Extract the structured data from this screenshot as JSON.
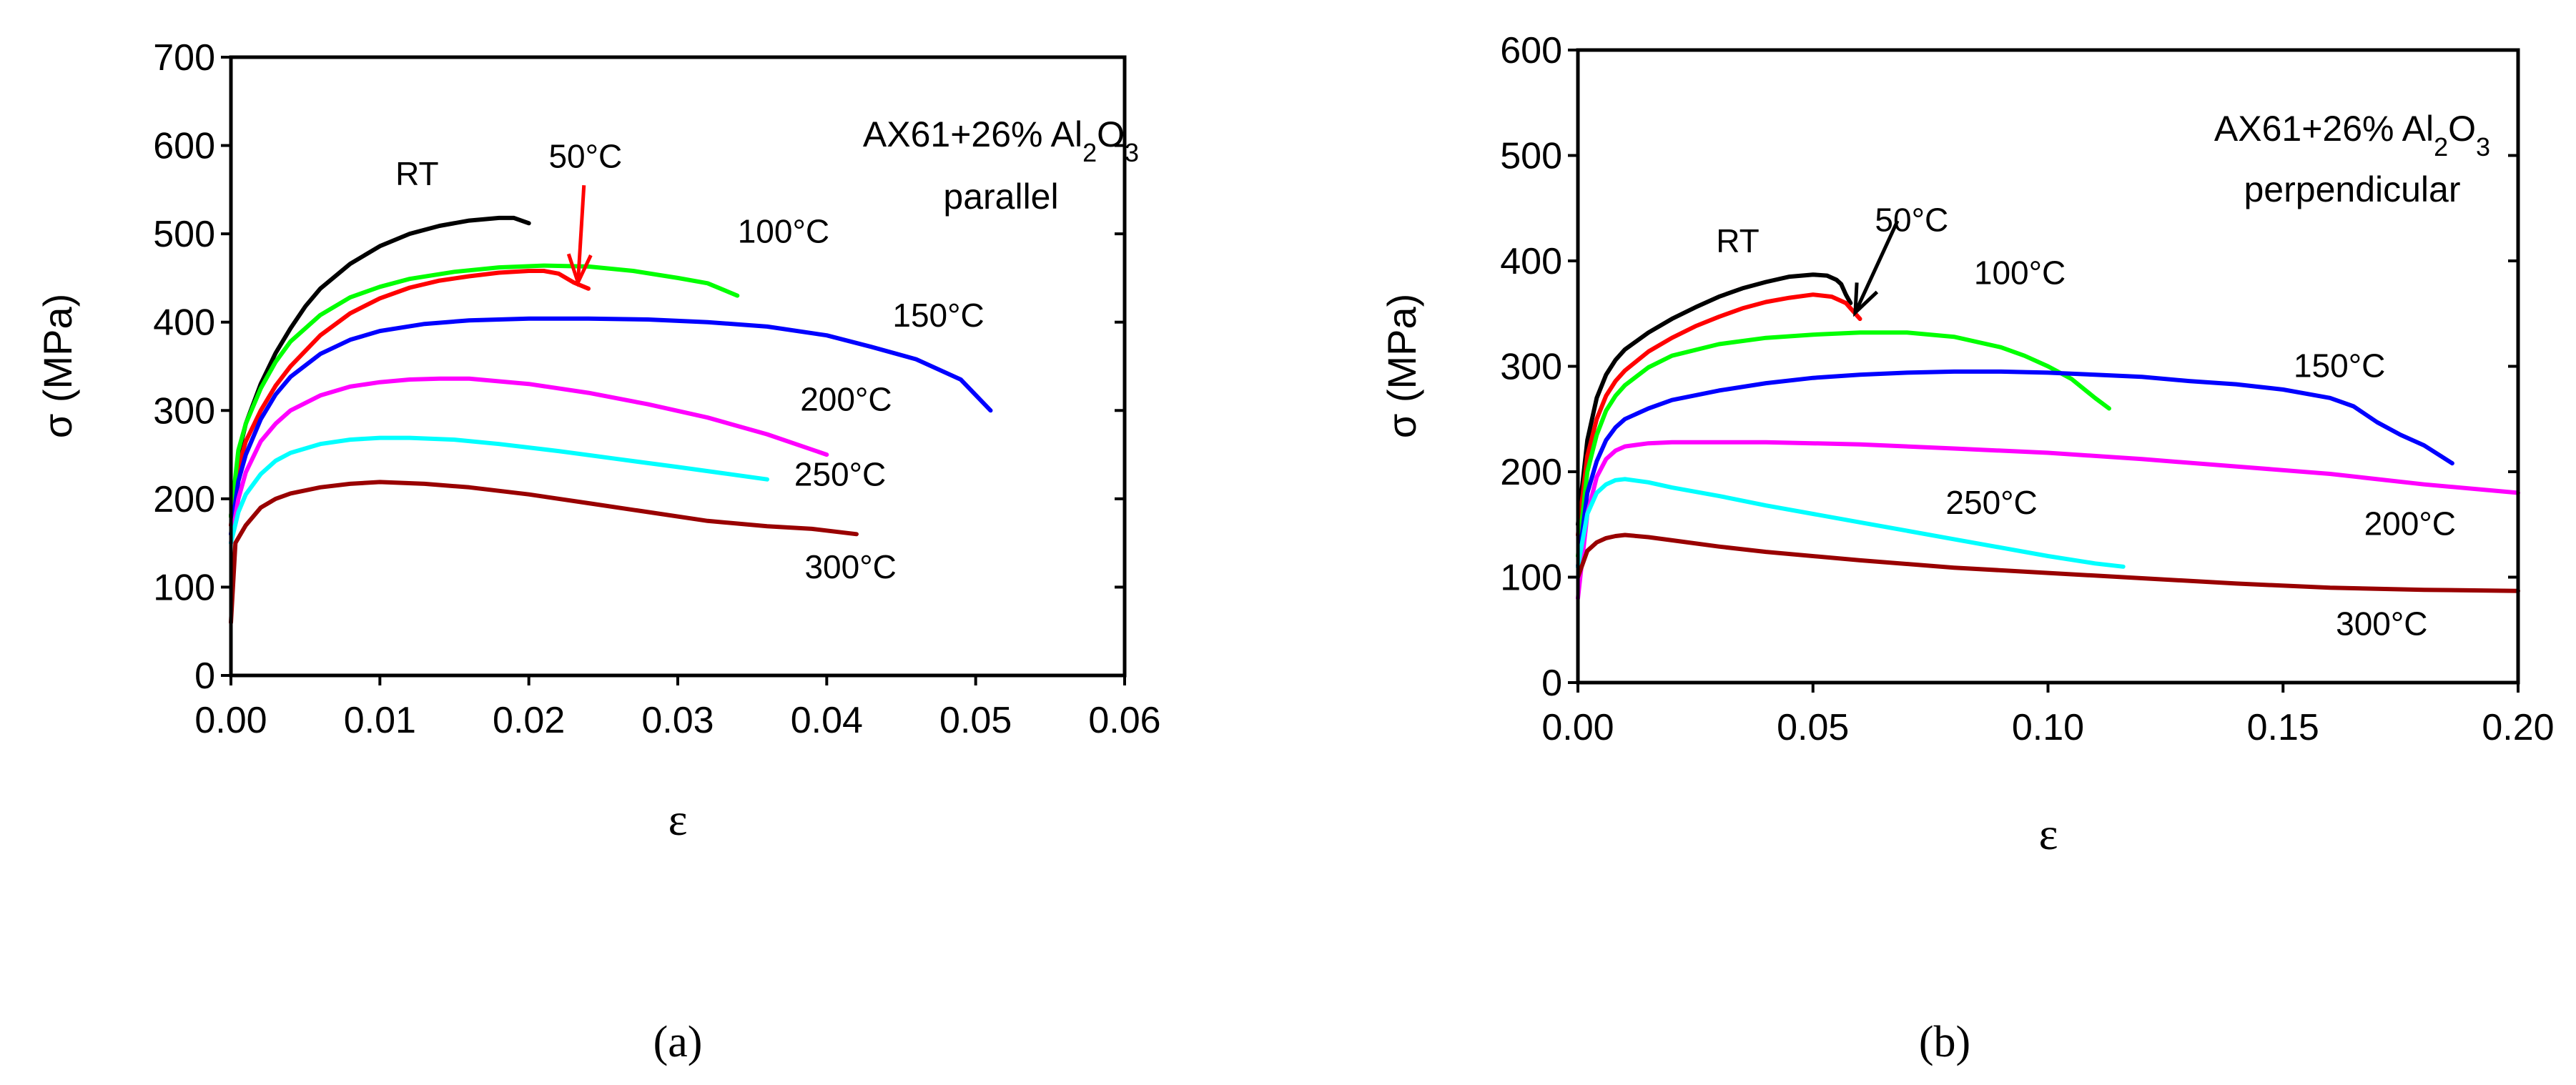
{
  "chart_data": [
    {
      "type": "line",
      "panel": "a",
      "caption": "(a)",
      "xlabel": "ε",
      "ylabel": "σ (MPa)",
      "xlim": [
        0,
        0.06
      ],
      "ylim": [
        0,
        700
      ],
      "xticks": [
        "0.00",
        "0.01",
        "0.02",
        "0.03",
        "0.04",
        "0.05",
        "0.06"
      ],
      "yticks": [
        "0",
        "100",
        "200",
        "300",
        "400",
        "500",
        "600",
        "700"
      ],
      "grid": false,
      "annotation": {
        "line1": "AX61+26% Al",
        "sub1": "2",
        "mid": "O",
        "sub2": "3",
        "line2": "parallel"
      },
      "arrow": {
        "color": "#ff0000",
        "from": [
          0.0237,
          555
        ],
        "to": [
          0.0233,
          445
        ]
      },
      "series": [
        {
          "name": "RT",
          "color": "#000000",
          "label": "RT",
          "label_at": [
            0.0125,
            555
          ],
          "x": [
            0,
            0.0005,
            0.001,
            0.002,
            0.003,
            0.004,
            0.005,
            0.006,
            0.008,
            0.01,
            0.012,
            0.014,
            0.016,
            0.018,
            0.019,
            0.02
          ],
          "y": [
            180,
            250,
            285,
            330,
            365,
            393,
            418,
            438,
            466,
            486,
            500,
            509,
            515,
            518,
            518,
            512
          ]
        },
        {
          "name": "50°C",
          "color": "#ff0000",
          "label": "50°C",
          "label_at": [
            0.0238,
            575
          ],
          "x": [
            0,
            0.0005,
            0.001,
            0.002,
            0.003,
            0.004,
            0.006,
            0.008,
            0.01,
            0.012,
            0.014,
            0.016,
            0.018,
            0.02,
            0.021,
            0.022,
            0.023,
            0.024
          ],
          "y": [
            170,
            235,
            265,
            300,
            328,
            350,
            385,
            410,
            427,
            439,
            447,
            452,
            456,
            458,
            458,
            455,
            445,
            438
          ]
        },
        {
          "name": "100°C",
          "color": "#00ff00",
          "label": "100°C",
          "label_at": [
            0.0371,
            490
          ],
          "x": [
            0,
            0.0005,
            0.001,
            0.002,
            0.003,
            0.004,
            0.006,
            0.008,
            0.01,
            0.012,
            0.015,
            0.018,
            0.021,
            0.024,
            0.027,
            0.03,
            0.032,
            0.034
          ],
          "y": [
            180,
            255,
            285,
            325,
            355,
            378,
            408,
            428,
            440,
            449,
            457,
            462,
            464,
            463,
            458,
            450,
            444,
            430
          ]
        },
        {
          "name": "150°C",
          "color": "#0000ff",
          "label": "150°C",
          "label_at": [
            0.0475,
            395
          ],
          "x": [
            0,
            0.0005,
            0.001,
            0.002,
            0.003,
            0.004,
            0.006,
            0.008,
            0.01,
            0.013,
            0.016,
            0.02,
            0.024,
            0.028,
            0.032,
            0.036,
            0.04,
            0.043,
            0.046,
            0.049,
            0.051
          ],
          "y": [
            160,
            220,
            250,
            290,
            318,
            338,
            364,
            380,
            390,
            398,
            402,
            404,
            404,
            403,
            400,
            395,
            385,
            372,
            358,
            335,
            300
          ]
        },
        {
          "name": "200°C",
          "color": "#ff00ff",
          "label": "200°C",
          "label_at": [
            0.0413,
            300
          ],
          "x": [
            0,
            0.0005,
            0.001,
            0.002,
            0.003,
            0.004,
            0.006,
            0.008,
            0.01,
            0.012,
            0.014,
            0.016,
            0.02,
            0.024,
            0.028,
            0.032,
            0.036,
            0.04
          ],
          "y": [
            150,
            200,
            230,
            265,
            285,
            300,
            317,
            327,
            332,
            335,
            336,
            336,
            330,
            320,
            307,
            292,
            273,
            250
          ]
        },
        {
          "name": "250°C",
          "color": "#00ffff",
          "label": "250°C",
          "label_at": [
            0.0409,
            215
          ],
          "x": [
            0,
            0.0005,
            0.001,
            0.002,
            0.003,
            0.004,
            0.006,
            0.008,
            0.01,
            0.012,
            0.015,
            0.018,
            0.022,
            0.026,
            0.03,
            0.033,
            0.036
          ],
          "y": [
            150,
            185,
            205,
            228,
            243,
            252,
            262,
            267,
            269,
            269,
            267,
            262,
            254,
            245,
            236,
            229,
            222
          ]
        },
        {
          "name": "300°C",
          "color": "#990000",
          "label": "300°C",
          "label_at": [
            0.0416,
            110
          ],
          "x": [
            0,
            0.0003,
            0.001,
            0.002,
            0.003,
            0.004,
            0.006,
            0.008,
            0.01,
            0.013,
            0.016,
            0.02,
            0.024,
            0.028,
            0.032,
            0.036,
            0.039,
            0.042
          ],
          "y": [
            60,
            150,
            170,
            190,
            200,
            206,
            213,
            217,
            219,
            217,
            213,
            205,
            195,
            185,
            175,
            169,
            166,
            160
          ]
        }
      ]
    },
    {
      "type": "line",
      "panel": "b",
      "caption": "(b)",
      "xlabel": "ε",
      "ylabel": "σ (MPa)",
      "xlim": [
        0,
        0.2
      ],
      "ylim": [
        0,
        600
      ],
      "xticks": [
        "0.00",
        "0.05",
        "0.10",
        "0.15",
        "0.20"
      ],
      "yticks": [
        "0",
        "100",
        "200",
        "300",
        "400",
        "500",
        "600"
      ],
      "grid": false,
      "annotation": {
        "line1": "AX61+26% Al",
        "sub1": "2",
        "mid": "O",
        "sub2": "3",
        "line2": "perpendicular"
      },
      "arrow": {
        "color": "#000000",
        "from": [
          0.068,
          438
        ],
        "to": [
          0.059,
          351
        ]
      },
      "series": [
        {
          "name": "RT",
          "color": "#000000",
          "label": "RT",
          "label_at": [
            0.034,
            408
          ],
          "x": [
            0,
            0.002,
            0.004,
            0.006,
            0.008,
            0.01,
            0.015,
            0.02,
            0.025,
            0.03,
            0.035,
            0.04,
            0.045,
            0.05,
            0.053,
            0.055,
            0.056,
            0.057,
            0.058
          ],
          "y": [
            150,
            230,
            270,
            292,
            306,
            316,
            332,
            345,
            356,
            366,
            374,
            380,
            385,
            387,
            386,
            382,
            378,
            368,
            360
          ]
        },
        {
          "name": "50°C",
          "color": "#ff0000",
          "label": "50°C",
          "label_at": [
            0.071,
            428
          ],
          "x": [
            0,
            0.002,
            0.004,
            0.006,
            0.008,
            0.01,
            0.015,
            0.02,
            0.025,
            0.03,
            0.035,
            0.04,
            0.045,
            0.05,
            0.054,
            0.057,
            0.059,
            0.06
          ],
          "y": [
            140,
            215,
            250,
            272,
            286,
            296,
            314,
            327,
            338,
            347,
            355,
            361,
            365,
            368,
            366,
            360,
            350,
            345
          ]
        },
        {
          "name": "100°C",
          "color": "#00ff00",
          "label": "100°C",
          "label_at": [
            0.094,
            378
          ],
          "x": [
            0,
            0.002,
            0.004,
            0.006,
            0.008,
            0.01,
            0.015,
            0.02,
            0.03,
            0.04,
            0.05,
            0.06,
            0.07,
            0.08,
            0.09,
            0.095,
            0.1,
            0.105,
            0.11,
            0.113
          ],
          "y": [
            120,
            200,
            235,
            258,
            272,
            282,
            299,
            310,
            321,
            327,
            330,
            332,
            332,
            328,
            318,
            310,
            300,
            288,
            270,
            260
          ]
        },
        {
          "name": "150°C",
          "color": "#0000ff",
          "label": "150°C",
          "label_at": [
            0.162,
            290
          ],
          "x": [
            0,
            0.002,
            0.004,
            0.006,
            0.008,
            0.01,
            0.015,
            0.02,
            0.03,
            0.04,
            0.05,
            0.06,
            0.07,
            0.08,
            0.09,
            0.1,
            0.11,
            0.12,
            0.13,
            0.14,
            0.15,
            0.16,
            0.165,
            0.17,
            0.175,
            0.18,
            0.186
          ],
          "y": [
            110,
            180,
            210,
            230,
            242,
            250,
            260,
            268,
            277,
            284,
            289,
            292,
            294,
            295,
            295,
            294,
            292,
            290,
            286,
            283,
            278,
            270,
            262,
            247,
            235,
            225,
            208
          ]
        },
        {
          "name": "200°C",
          "color": "#ff00ff",
          "label": "200°C",
          "label_at": [
            0.177,
            140
          ],
          "x": [
            0,
            0.002,
            0.004,
            0.006,
            0.008,
            0.01,
            0.015,
            0.02,
            0.04,
            0.06,
            0.08,
            0.1,
            0.12,
            0.14,
            0.16,
            0.18,
            0.2
          ],
          "y": [
            80,
            160,
            195,
            212,
            220,
            224,
            227,
            228,
            228,
            226,
            222,
            218,
            212,
            205,
            198,
            188,
            180
          ]
        },
        {
          "name": "250°C",
          "color": "#00ffff",
          "label": "250°C",
          "label_at": [
            0.088,
            160
          ],
          "x": [
            0,
            0.002,
            0.004,
            0.006,
            0.008,
            0.01,
            0.015,
            0.02,
            0.03,
            0.04,
            0.05,
            0.06,
            0.07,
            0.08,
            0.09,
            0.1,
            0.11,
            0.116
          ],
          "y": [
            110,
            160,
            180,
            188,
            192,
            193,
            190,
            185,
            177,
            168,
            160,
            152,
            144,
            136,
            128,
            120,
            113,
            110
          ]
        },
        {
          "name": "300°C",
          "color": "#990000",
          "label": "300°C",
          "label_at": [
            0.171,
            45
          ],
          "x": [
            0,
            0.002,
            0.004,
            0.006,
            0.008,
            0.01,
            0.015,
            0.02,
            0.03,
            0.04,
            0.06,
            0.08,
            0.1,
            0.12,
            0.14,
            0.16,
            0.18,
            0.2
          ],
          "y": [
            100,
            125,
            133,
            137,
            139,
            140,
            138,
            135,
            129,
            124,
            116,
            109,
            104,
            99,
            94,
            90,
            88,
            87
          ]
        }
      ]
    }
  ]
}
